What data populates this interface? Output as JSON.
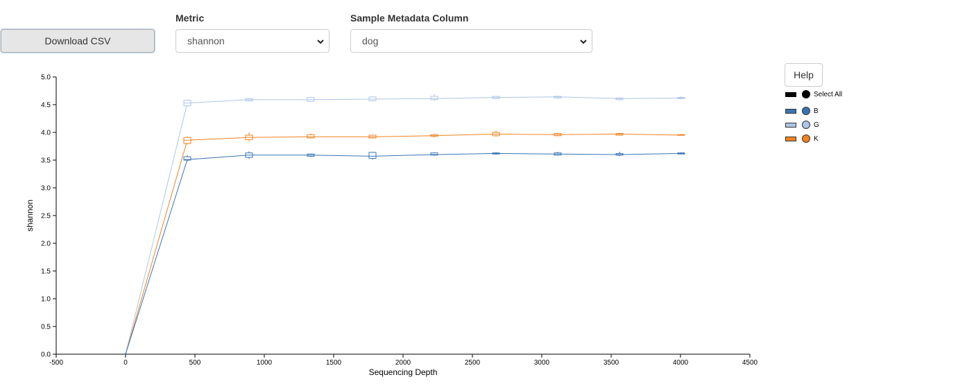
{
  "controls": {
    "download_label": "Download CSV",
    "metric_label": "Metric",
    "metric_value": "shannon",
    "metadata_label": "Sample Metadata Column",
    "metadata_value": "dog",
    "help_label": "Help"
  },
  "legend": {
    "select_all": "Select All",
    "items": [
      {
        "label": "B",
        "color": "#3a74b4"
      },
      {
        "label": "G",
        "color": "#adc5e6"
      },
      {
        "label": "K",
        "color": "#f2821e"
      }
    ]
  },
  "chart_data": {
    "type": "line",
    "xlabel": "Sequencing Depth",
    "ylabel": "shannon",
    "xlim": [
      -500,
      4500
    ],
    "ylim": [
      0,
      5
    ],
    "x_ticks": [
      "-500",
      "0",
      "500",
      "1000",
      "1500",
      "2000",
      "2500",
      "3000",
      "3500",
      "4000",
      "4500"
    ],
    "y_ticks": [
      "0.0",
      "0.5",
      "1.0",
      "1.5",
      "2.0",
      "2.5",
      "3.0",
      "3.5",
      "4.0",
      "4.5",
      "5.0"
    ],
    "x": [
      0,
      445,
      890,
      1335,
      1780,
      2225,
      2670,
      3115,
      3560,
      4005
    ],
    "legend_position": "right",
    "series": [
      {
        "name": "B",
        "color": "#3a74b4",
        "values": [
          0,
          3.51,
          3.59,
          3.59,
          3.57,
          3.6,
          3.62,
          3.61,
          3.6,
          3.62
        ],
        "q1": [
          0,
          3.5,
          3.55,
          3.57,
          3.53,
          3.59,
          3.61,
          3.59,
          3.59,
          3.61
        ],
        "q3": [
          0,
          3.56,
          3.63,
          3.61,
          3.64,
          3.63,
          3.63,
          3.63,
          3.62,
          3.63
        ],
        "lo": [
          0,
          3.48,
          3.52,
          3.56,
          3.51,
          3.58,
          3.6,
          3.58,
          3.57,
          3.61
        ],
        "hi": [
          0,
          3.59,
          3.66,
          3.62,
          3.65,
          3.64,
          3.64,
          3.65,
          3.65,
          3.64
        ]
      },
      {
        "name": "G",
        "color": "#adc5e6",
        "values": [
          0,
          4.53,
          4.59,
          4.59,
          4.6,
          4.61,
          4.63,
          4.64,
          4.61,
          4.62
        ],
        "q1": [
          0,
          4.48,
          4.57,
          4.56,
          4.57,
          4.59,
          4.61,
          4.62,
          4.59,
          4.61
        ],
        "q3": [
          0,
          4.58,
          4.61,
          4.63,
          4.64,
          4.65,
          4.65,
          4.65,
          4.62,
          4.63
        ],
        "lo": [
          0,
          4.47,
          4.56,
          4.55,
          4.56,
          4.57,
          4.6,
          4.61,
          4.58,
          4.6
        ],
        "hi": [
          0,
          4.59,
          4.62,
          4.64,
          4.65,
          4.69,
          4.66,
          4.66,
          4.63,
          4.65
        ]
      },
      {
        "name": "K",
        "color": "#f2821e",
        "values": [
          0,
          3.86,
          3.91,
          3.92,
          3.92,
          3.94,
          3.97,
          3.96,
          3.97,
          3.95
        ],
        "q1": [
          0,
          3.8,
          3.87,
          3.9,
          3.9,
          3.93,
          3.94,
          3.94,
          3.95,
          3.95
        ],
        "q3": [
          0,
          3.91,
          3.95,
          3.96,
          3.95,
          3.96,
          4.0,
          3.98,
          3.98,
          3.96
        ],
        "lo": [
          0,
          3.78,
          3.84,
          3.89,
          3.89,
          3.91,
          3.92,
          3.93,
          3.94,
          3.94
        ],
        "hi": [
          0,
          3.93,
          4.0,
          3.98,
          3.96,
          3.97,
          4.03,
          3.99,
          3.99,
          3.97
        ]
      }
    ]
  }
}
